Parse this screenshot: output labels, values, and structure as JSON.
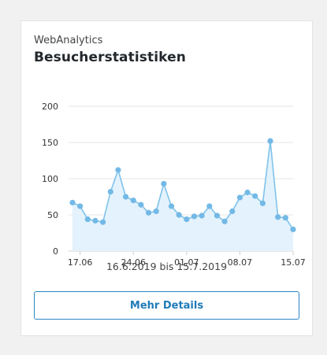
{
  "widget": {
    "subtitle": "WebAnalytics",
    "title": "Besucherstatistiken",
    "date_range": "16.6.2019 bis 15.7.2019",
    "details_button": "Mehr Details"
  },
  "colors": {
    "line": "#7fc3ea",
    "point": "#73b9e6",
    "area": "#e3f2fc",
    "grid": "#e6e6e6",
    "axis_text": "#333333",
    "button": "#1f7bb8"
  },
  "chart_data": {
    "type": "area",
    "title": "",
    "xlabel": "",
    "ylabel": "",
    "ylim": [
      0,
      200
    ],
    "yticks": [
      0,
      50,
      100,
      150,
      200
    ],
    "x_tick_labels": [
      {
        "index": 1,
        "label": "17.06"
      },
      {
        "index": 8,
        "label": "24.06"
      },
      {
        "index": 15,
        "label": "01.07"
      },
      {
        "index": 22,
        "label": "08.07"
      },
      {
        "index": 29,
        "label": "15.07"
      }
    ],
    "grid": true,
    "x": [
      "16.06",
      "17.06",
      "18.06",
      "19.06",
      "20.06",
      "21.06",
      "22.06",
      "23.06",
      "24.06",
      "25.06",
      "26.06",
      "27.06",
      "28.06",
      "29.06",
      "30.06",
      "01.07",
      "02.07",
      "03.07",
      "04.07",
      "05.07",
      "06.07",
      "07.07",
      "08.07",
      "09.07",
      "10.07",
      "11.07",
      "12.07",
      "13.07",
      "14.07",
      "15.07"
    ],
    "series": [
      {
        "values": [
          67,
          62,
          44,
          42,
          40,
          82,
          112,
          75,
          70,
          64,
          53,
          55,
          93,
          62,
          50,
          44,
          48,
          49,
          62,
          49,
          41,
          55,
          74,
          81,
          76,
          66,
          152,
          47,
          46,
          30
        ]
      }
    ]
  }
}
